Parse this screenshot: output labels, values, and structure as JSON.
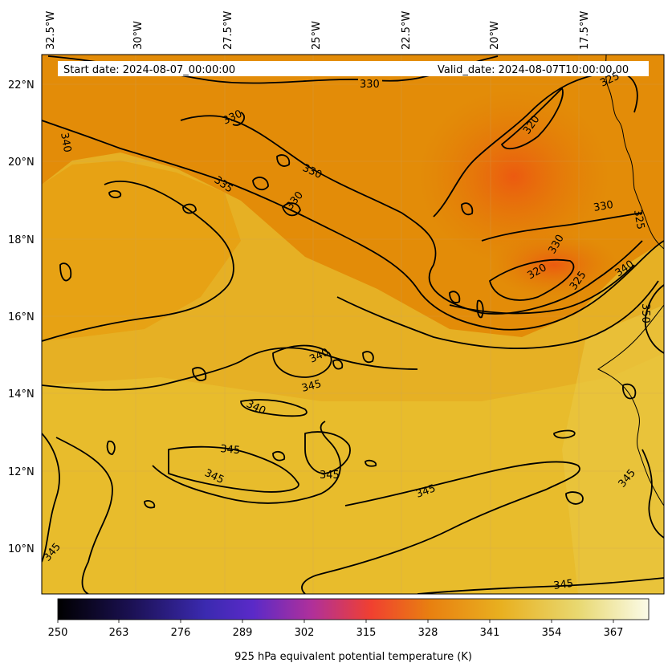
{
  "header": {
    "start_date": "Start date: 2024-08-07_00:00:00",
    "valid_date": "Valid_date: 2024-08-07T10:00:00.00"
  },
  "axes": {
    "lon_ticks": [
      "32.5°W",
      "30°W",
      "27.5°W",
      "25°W",
      "22.5°W",
      "20°W",
      "17.5°W"
    ],
    "lat_ticks": [
      "22°N",
      "20°N",
      "18°N",
      "16°N",
      "14°N",
      "12°N",
      "10°N"
    ]
  },
  "contour_labels": [
    {
      "text": "330"
    },
    {
      "text": "330"
    },
    {
      "text": "330"
    },
    {
      "text": "330"
    },
    {
      "text": "330"
    },
    {
      "text": "320"
    },
    {
      "text": "320"
    },
    {
      "text": "325"
    },
    {
      "text": "325"
    },
    {
      "text": "325"
    },
    {
      "text": "330"
    },
    {
      "text": "340"
    },
    {
      "text": "335"
    },
    {
      "text": "340"
    },
    {
      "text": "340"
    },
    {
      "text": "345"
    },
    {
      "text": "340"
    },
    {
      "text": "345"
    },
    {
      "text": "345"
    },
    {
      "text": "345"
    },
    {
      "text": "345"
    },
    {
      "text": "345"
    },
    {
      "text": "345"
    },
    {
      "text": "350"
    },
    {
      "text": "345"
    }
  ],
  "colorbar": {
    "ticks": [
      "250",
      "263",
      "276",
      "289",
      "302",
      "315",
      "328",
      "341",
      "354",
      "367"
    ],
    "label": "925 hPa equivalent potential temperature (K)"
  },
  "colors": {
    "field_low": "#e07800",
    "field_mid": "#e8a010",
    "field_high": "#e8c030",
    "contour": "#000000"
  }
}
